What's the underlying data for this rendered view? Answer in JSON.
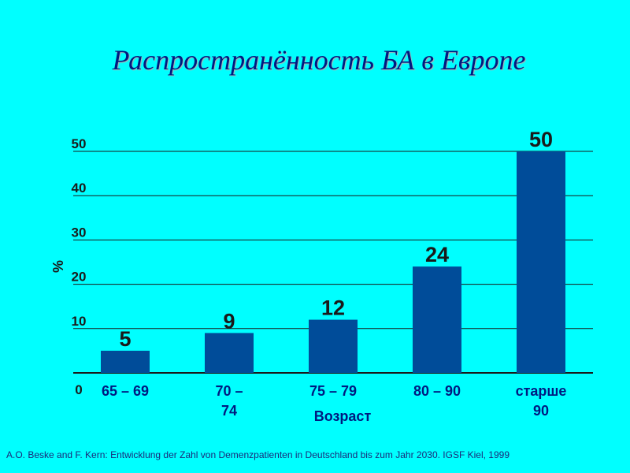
{
  "chart_data": {
    "type": "bar",
    "title": "Распространённость БА в Европе",
    "ylabel": "%",
    "xlabel": "Возраст",
    "ylim": [
      0,
      50
    ],
    "yticks": [
      "0",
      "10",
      "20",
      "30",
      "40",
      "50"
    ],
    "categories": [
      [
        "65 – 69"
      ],
      [
        "70 –",
        "74"
      ],
      [
        "75 – 79"
      ],
      [
        "80 – 90"
      ],
      [
        "старше",
        "90"
      ]
    ],
    "values": [
      5,
      9,
      12,
      24,
      50
    ],
    "data_labels": [
      "5",
      "9",
      "12",
      "24",
      "50"
    ],
    "grid": true,
    "bar_color": "#004c99",
    "gridline_color": "#1a1a1a"
  },
  "footnote": "A.O. Beske and F. Kern: Entwicklung der Zahl von Demenzpatienten in Deutschland bis zum Jahr 2030. IGSF Kiel, 1999"
}
